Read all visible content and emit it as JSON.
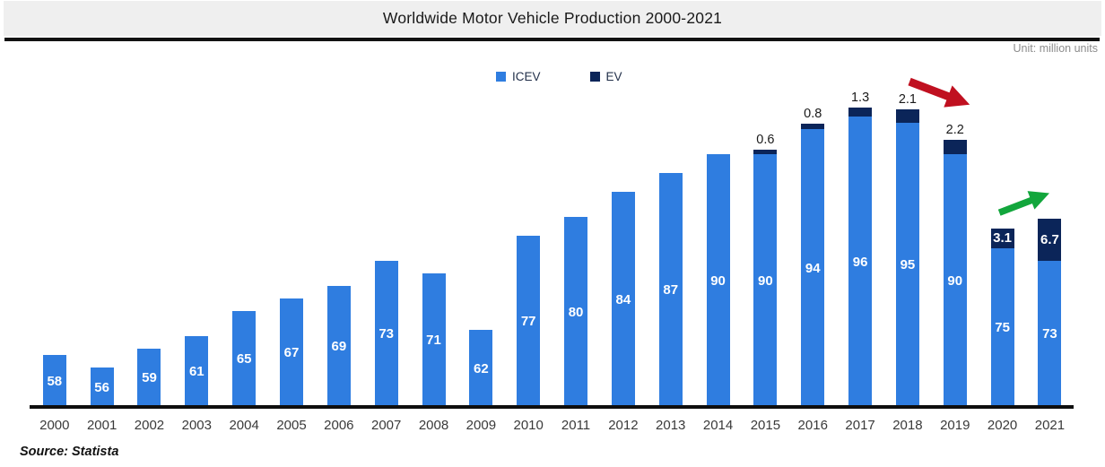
{
  "header": {
    "title": "Worldwide Motor Vehicle Production 2000-2021",
    "unit_note": "Unit: million units"
  },
  "legend": {
    "items": [
      {
        "label": "ICEV",
        "color": "#2f7de0"
      },
      {
        "label": "EV",
        "color": "#0b2559"
      }
    ]
  },
  "source_note": "Source: Statista",
  "chart_data": {
    "type": "bar",
    "stacked": true,
    "title": "Worldwide Motor Vehicle Production 2000-2021",
    "unit": "million units",
    "categories": [
      "2000",
      "2001",
      "2002",
      "2003",
      "2004",
      "2005",
      "2006",
      "2007",
      "2008",
      "2009",
      "2010",
      "2011",
      "2012",
      "2013",
      "2014",
      "2015",
      "2016",
      "2017",
      "2018",
      "2019",
      "2020",
      "2021"
    ],
    "series": [
      {
        "name": "ICEV",
        "color": "#2f7de0",
        "values": [
          58,
          56,
          59,
          61,
          65,
          67,
          69,
          73,
          71,
          62,
          77,
          80,
          84,
          87,
          90,
          90,
          94,
          96,
          95,
          90,
          75,
          73
        ]
      },
      {
        "name": "EV",
        "color": "#0b2559",
        "values": [
          0,
          0,
          0,
          0,
          0,
          0,
          0,
          0,
          0,
          0,
          0,
          0,
          0,
          0,
          0,
          0.6,
          0.8,
          1.3,
          2.1,
          2.2,
          3.1,
          6.7
        ]
      }
    ],
    "value_label_style": "ICEV totals in white inside bars; EV values above bar 2015-2019, inside navy segment 2020-2021",
    "ylim": [
      49.5,
      100
    ],
    "gridlines": false,
    "legend_position": "top-center",
    "annotations": [
      {
        "type": "arrow",
        "direction": "down-right",
        "color": "#c01020",
        "meaning": "production decline 2018-2020"
      },
      {
        "type": "arrow",
        "direction": "up-right",
        "color": "#12a63c",
        "meaning": "EV growth 2020-2021"
      }
    ]
  }
}
